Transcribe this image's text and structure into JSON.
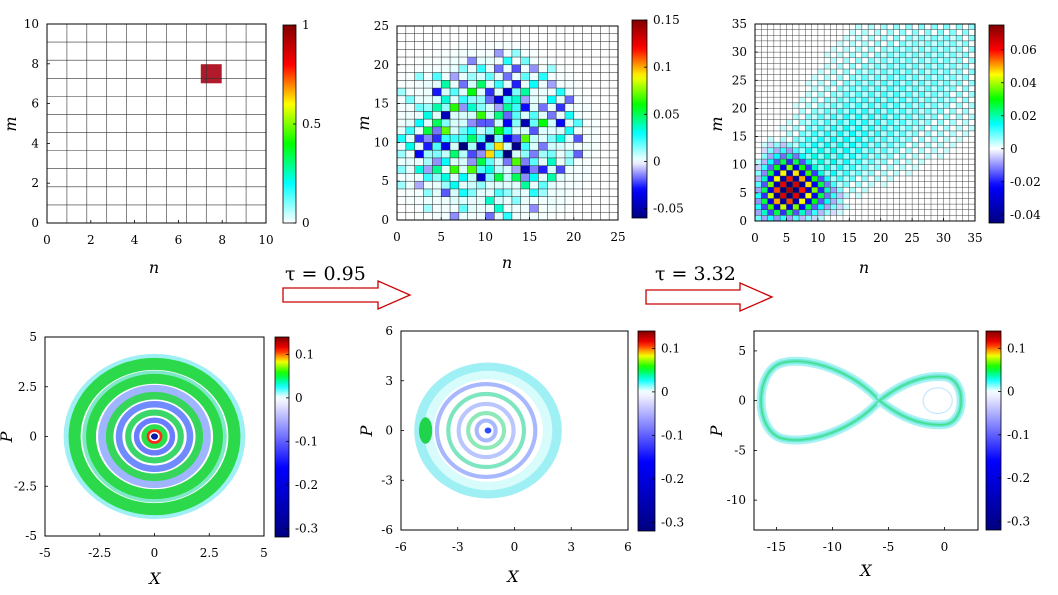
{
  "chart_data": [
    {
      "id": "density_matrix_initial",
      "type": "heatmap",
      "xlabel": "n",
      "ylabel": "m",
      "xlim": [
        0,
        10
      ],
      "ylim": [
        0,
        10
      ],
      "xticks": [
        "0",
        "2",
        "4",
        "6",
        "8",
        "10"
      ],
      "yticks": [
        "0",
        "2",
        "4",
        "6",
        "8",
        "10"
      ],
      "colorbar": {
        "min": 0,
        "max": 1,
        "ticks": [
          "0",
          "0.5",
          "1"
        ],
        "tick_values": [
          0,
          0.5,
          1
        ]
      },
      "grid_size": 11,
      "nonzero_cells": [
        {
          "n": 7.5,
          "m": 7.5,
          "value": 1
        }
      ]
    },
    {
      "id": "density_matrix_tau1",
      "type": "heatmap",
      "xlabel": "n",
      "ylabel": "m",
      "xlim": [
        0,
        25
      ],
      "ylim": [
        0,
        25
      ],
      "xticks": [
        "0",
        "5",
        "10",
        "15",
        "20",
        "25"
      ],
      "yticks": [
        "0",
        "5",
        "10",
        "15",
        "20",
        "25"
      ],
      "colorbar": {
        "min": -0.06,
        "max": 0.15,
        "ticks": [
          "-0.05",
          "0",
          "0.05",
          "0.1",
          "0.15"
        ],
        "tick_values": [
          -0.05,
          0,
          0.05,
          0.1,
          0.15
        ]
      },
      "grid_size": 25,
      "value_range": [
        -0.06,
        0.15
      ]
    },
    {
      "id": "density_matrix_tau2",
      "type": "heatmap",
      "xlabel": "n",
      "ylabel": "m",
      "xlim": [
        0,
        35
      ],
      "ylim": [
        0,
        35
      ],
      "xticks": [
        "0",
        "5",
        "10",
        "15",
        "20",
        "25",
        "30",
        "35"
      ],
      "yticks": [
        "0",
        "5",
        "10",
        "15",
        "20",
        "25",
        "30",
        "35"
      ],
      "colorbar": {
        "min": -0.045,
        "max": 0.075,
        "ticks": [
          "-0.04",
          "-0.02",
          "0",
          "0.02",
          "0.04",
          "0.06"
        ],
        "tick_values": [
          -0.04,
          -0.02,
          0,
          0.02,
          0.04,
          0.06
        ]
      },
      "grid_size": 35,
      "value_range": [
        -0.045,
        0.075
      ]
    },
    {
      "id": "wigner_initial",
      "type": "heatmap",
      "xlabel": "X",
      "ylabel": "P",
      "xlim": [
        -5,
        5
      ],
      "ylim": [
        -5,
        5
      ],
      "xticks": [
        "-5",
        "-2.5",
        "0",
        "2.5",
        "5"
      ],
      "yticks": [
        "-5",
        "-2.5",
        "0",
        "2.5",
        "5"
      ],
      "colorbar": {
        "min": -0.32,
        "max": 0.14,
        "ticks": [
          "-0.3",
          "-0.2",
          "-0.1",
          "0",
          "0.1"
        ],
        "tick_values": [
          -0.3,
          -0.2,
          -0.1,
          0,
          0.1
        ]
      }
    },
    {
      "id": "wigner_tau1",
      "type": "heatmap",
      "xlabel": "X",
      "ylabel": "P",
      "xlim": [
        -6,
        6
      ],
      "ylim": [
        -6,
        6
      ],
      "xticks": [
        "-6",
        "-3",
        "0",
        "3",
        "6"
      ],
      "yticks": [
        "-6",
        "-3",
        "0",
        "3",
        "6"
      ],
      "colorbar": {
        "min": -0.32,
        "max": 0.14,
        "ticks": [
          "-0.3",
          "-0.2",
          "-0.1",
          "0",
          "0.1"
        ],
        "tick_values": [
          -0.3,
          -0.2,
          -0.1,
          0,
          0.1
        ]
      }
    },
    {
      "id": "wigner_tau2",
      "type": "heatmap",
      "xlabel": "X",
      "ylabel": "P",
      "xlim": [
        -17,
        3
      ],
      "ylim": [
        -13,
        7
      ],
      "xticks": [
        "-15",
        "-10",
        "-5",
        "0"
      ],
      "yticks": [
        "5",
        "0",
        "-5",
        "-10"
      ],
      "colorbar": {
        "min": -0.32,
        "max": 0.14,
        "ticks": [
          "-0.3",
          "-0.2",
          "-0.1",
          "0",
          "0.1"
        ],
        "tick_values": [
          -0.3,
          -0.2,
          -0.1,
          0,
          0.1
        ]
      }
    }
  ],
  "arrows": [
    {
      "label": "τ = 0.95"
    },
    {
      "label": "τ = 3.32"
    }
  ],
  "colormap": [
    "#00007f",
    "#0000ff",
    "#ffffff",
    "#00ffff",
    "#00ff00",
    "#ffff00",
    "#ff0000",
    "#7f0000"
  ]
}
